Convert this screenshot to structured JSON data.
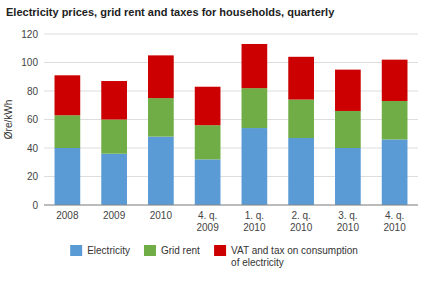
{
  "chart_data": {
    "type": "bar",
    "stacked": true,
    "title": "Electricity prices, grid rent and taxes for households, quarterly",
    "ylabel": "Øre/kWh",
    "categories": [
      "2008",
      "2009",
      "2010",
      "4. q.\n2009",
      "1. q.\n2010",
      "2. q.\n2010",
      "3. q.\n2010",
      "4. q.\n2010"
    ],
    "series": [
      {
        "name": "Electricity",
        "color": "#5b9bd5",
        "values": [
          40,
          36,
          48,
          32,
          54,
          47,
          40,
          46
        ]
      },
      {
        "name": "Grid rent",
        "color": "#70ad47",
        "values": [
          23,
          24,
          27,
          24,
          28,
          27,
          26,
          27
        ]
      },
      {
        "name": "VAT and tax on consumption\nof electricity",
        "color": "#cc0000",
        "values": [
          28,
          27,
          30,
          27,
          31,
          30,
          29,
          29
        ]
      }
    ],
    "ylim": [
      0,
      120
    ],
    "yticks": [
      0,
      20,
      40,
      60,
      80,
      100,
      120
    ],
    "grid": true,
    "legend": "bottom"
  }
}
